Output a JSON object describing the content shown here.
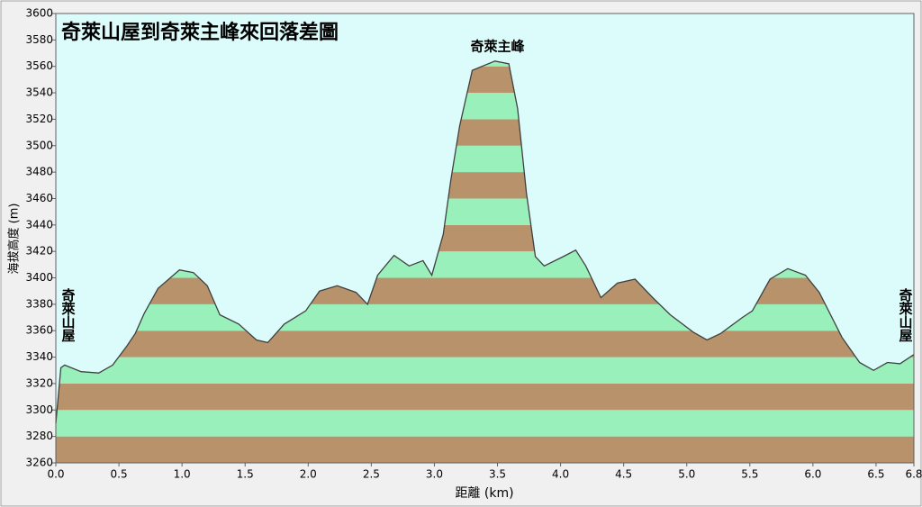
{
  "chart_data": {
    "type": "area",
    "title": "奇萊山屋到奇萊主峰來回落差圖",
    "x_label": "距離 (km)",
    "y_label": "海拔高度 (m)",
    "annotations": [
      {
        "text": "奇萊主峰",
        "x": 3.5
      },
      {
        "text": "奇萊山屋",
        "x": 0
      },
      {
        "text": "奇萊山屋",
        "x": 6.8
      }
    ],
    "x": [
      0,
      0.04,
      0.07,
      0.2,
      0.34,
      0.45,
      0.56,
      0.63,
      0.7,
      0.81,
      0.98,
      1.09,
      1.2,
      1.3,
      1.45,
      1.59,
      1.68,
      1.81,
      1.98,
      2.09,
      2.23,
      2.38,
      2.47,
      2.55,
      2.68,
      2.8,
      2.91,
      2.98,
      3.07,
      3.13,
      3.2,
      3.3,
      3.48,
      3.59,
      3.66,
      3.73,
      3.8,
      3.87,
      4.02,
      4.12,
      4.2,
      4.32,
      4.45,
      4.59,
      4.73,
      4.87,
      5.05,
      5.16,
      5.27,
      5.44,
      5.52,
      5.66,
      5.8,
      5.94,
      6.05,
      6.23,
      6.37,
      6.48,
      6.59,
      6.69,
      6.8
    ],
    "values": [
      3290,
      3332,
      3334,
      3329,
      3328,
      3334,
      3348,
      3358,
      3373,
      3392,
      3406,
      3404,
      3394,
      3372,
      3365,
      3353,
      3351,
      3365,
      3375,
      3390,
      3394,
      3389,
      3380,
      3402,
      3417,
      3409,
      3413,
      3402,
      3433,
      3474,
      3515,
      3557,
      3564,
      3562,
      3528,
      3464,
      3416,
      3409,
      3416,
      3421,
      3409,
      3385,
      3396,
      3399,
      3385,
      3372,
      3359,
      3353,
      3358,
      3370,
      3375,
      3399,
      3407,
      3402,
      3389,
      3355,
      3336,
      3330,
      3336,
      3335,
      3342
    ],
    "line_color": "#404040",
    "band_colors": [
      "#b8926a",
      "#99f0bb"
    ],
    "background": "#dcfcfc",
    "xlim": [
      0,
      6.8
    ],
    "xticks": [
      {
        "value": 0,
        "label": "0.0"
      },
      0.5,
      {
        "value": 1,
        "label": "1.0"
      },
      1.5,
      {
        "value": 2,
        "label": "2.0"
      },
      2.5,
      {
        "value": 3,
        "label": "3.0"
      },
      3.5,
      {
        "value": 4,
        "label": "4.0"
      },
      4.5,
      {
        "value": 5,
        "label": "5.0"
      },
      5.5,
      {
        "value": 6,
        "label": "6.0"
      },
      6.5,
      6.8
    ],
    "ylim": [
      3260,
      3600
    ],
    "yticks": [
      3260,
      3280,
      3300,
      3320,
      3340,
      3360,
      3380,
      3400,
      3420,
      3440,
      3460,
      3480,
      3500,
      3520,
      3540,
      3560,
      3580,
      3600
    ]
  }
}
